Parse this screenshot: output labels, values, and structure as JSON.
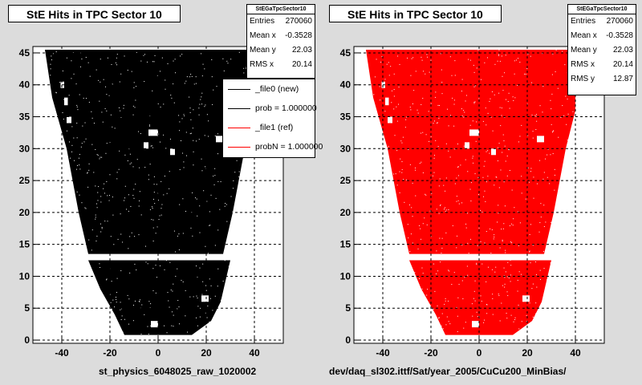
{
  "chart_data": [
    {
      "type": "scatter",
      "title": "StE Hits in TPC Sector 10",
      "xlabel": "st_physics_6048025_raw_1020002",
      "ylabel": "",
      "xlim": [
        -52,
        52
      ],
      "ylim": [
        -0.5,
        46
      ],
      "xticks": [
        -40,
        -20,
        0,
        20,
        40
      ],
      "yticks": [
        0,
        5,
        10,
        15,
        20,
        25,
        30,
        35,
        40,
        45
      ],
      "grid": true,
      "color": "#000000",
      "stats": {
        "name": "StEGaTpcSector10",
        "entries_label": "Entries",
        "entries": "270060",
        "meanx_label": "Mean x",
        "meanx": "-0.3528",
        "meany_label": "Mean y",
        "meany": "22.03",
        "rmsx_label": "RMS x",
        "rmsx": "20.14"
      },
      "legend": {
        "placement": "top-right",
        "entries": [
          {
            "label": "_file0 (new)",
            "color": "#000000"
          },
          {
            "label": "prob = 1.000000",
            "color": "#000000"
          },
          {
            "label": "_file1 (ref)",
            "color": "#ff0000"
          },
          {
            "label": "probN = 1.000000",
            "color": "#ff0000"
          }
        ]
      }
    },
    {
      "type": "scatter",
      "title": "StE Hits in TPC Sector 10",
      "xlabel": "dev/daq_sl302.ittf/Sat/year_2005/CuCu200_MinBias/",
      "ylabel": "",
      "xlim": [
        -52,
        52
      ],
      "ylim": [
        -0.5,
        46
      ],
      "xticks": [
        -40,
        -20,
        0,
        20,
        40
      ],
      "yticks": [
        0,
        5,
        10,
        15,
        20,
        25,
        30,
        35,
        40,
        45
      ],
      "grid": true,
      "color": "#ff0000",
      "stats": {
        "name": "StEGaTpcSector10",
        "entries_label": "Entries",
        "entries": "270060",
        "meanx_label": "Mean x",
        "meanx": "-0.3528",
        "meany_label": "Mean y",
        "meany": "22.03",
        "rmsx_label": "RMS x",
        "rmsx": "20.14",
        "rmsy_label": "RMS y",
        "rmsy": "12.87"
      }
    }
  ]
}
